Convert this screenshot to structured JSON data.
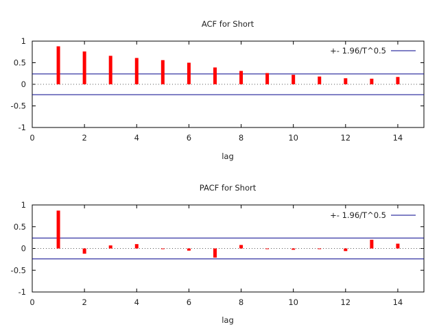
{
  "colors": {
    "bar": "#ff0000",
    "band": "#00008b",
    "frame": "#000000"
  },
  "chart_data": [
    {
      "type": "bar",
      "title": "ACF for Short",
      "xlabel": "lag",
      "ylabel": "",
      "xlim": [
        0,
        15
      ],
      "ylim": [
        -1,
        1
      ],
      "xticks": [
        "0",
        "2",
        "4",
        "6",
        "8",
        "10",
        "12",
        "14"
      ],
      "xtick_values": [
        0,
        2,
        4,
        6,
        8,
        10,
        12,
        14
      ],
      "yticks": [
        "1",
        "0.5",
        "0",
        "-0.5",
        "-1"
      ],
      "ytick_values": [
        1,
        0.5,
        0,
        -0.5,
        -1
      ],
      "legend_label": "+- 1.96/T^0.5",
      "legend_position": "top-right",
      "band": 0.24,
      "x": [
        1,
        2,
        3,
        4,
        5,
        6,
        7,
        8,
        9,
        10,
        11,
        12,
        13,
        14
      ],
      "values": [
        0.88,
        0.76,
        0.66,
        0.61,
        0.56,
        0.5,
        0.39,
        0.31,
        0.26,
        0.22,
        0.18,
        0.14,
        0.13,
        0.17
      ]
    },
    {
      "type": "bar",
      "title": "PACF for Short",
      "xlabel": "lag",
      "ylabel": "",
      "xlim": [
        0,
        15
      ],
      "ylim": [
        -1,
        1
      ],
      "xticks": [
        "0",
        "2",
        "4",
        "6",
        "8",
        "10",
        "12",
        "14"
      ],
      "xtick_values": [
        0,
        2,
        4,
        6,
        8,
        10,
        12,
        14
      ],
      "yticks": [
        "1",
        "0.5",
        "0",
        "-0.5",
        "-1"
      ],
      "ytick_values": [
        1,
        0.5,
        0,
        -0.5,
        -1
      ],
      "legend_label": "+- 1.96/T^0.5",
      "legend_position": "top-right",
      "band": 0.24,
      "x": [
        1,
        2,
        3,
        4,
        5,
        6,
        7,
        8,
        9,
        10,
        11,
        12,
        13,
        14
      ],
      "values": [
        0.87,
        -0.12,
        0.07,
        0.1,
        -0.01,
        -0.05,
        -0.21,
        0.08,
        -0.01,
        -0.03,
        -0.01,
        -0.06,
        0.2,
        0.11
      ]
    }
  ]
}
